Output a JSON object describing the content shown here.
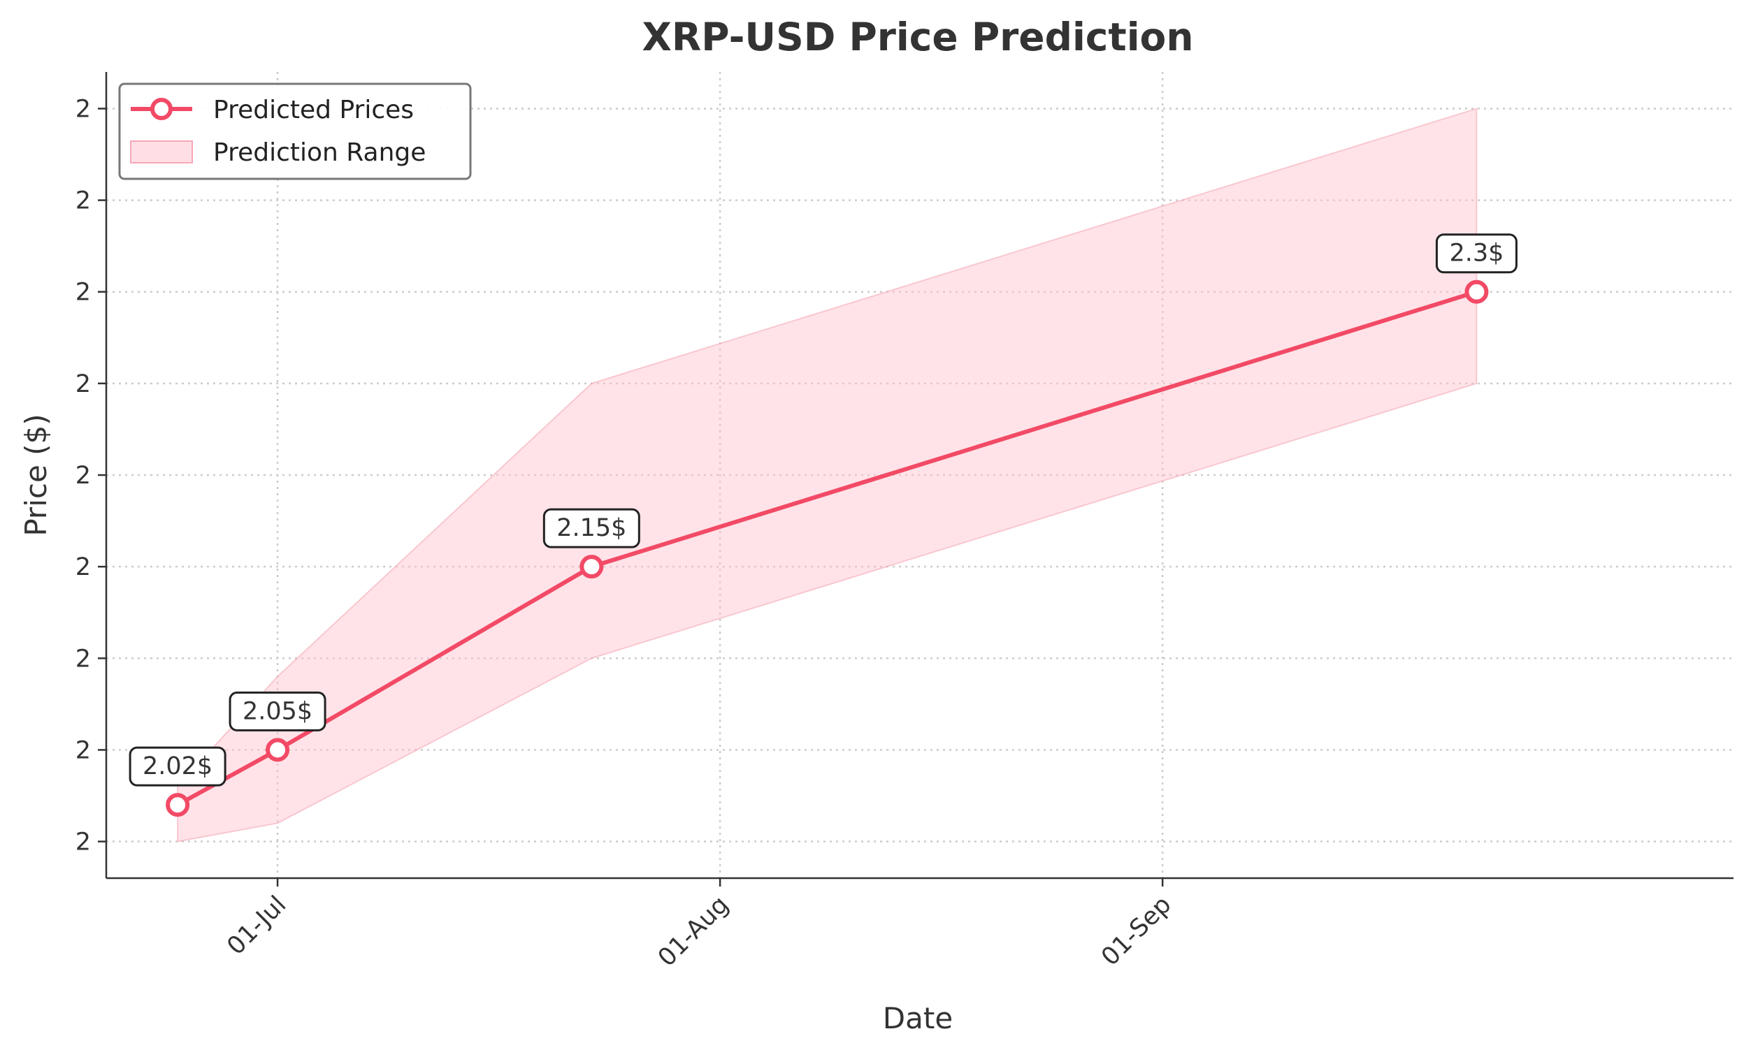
{
  "chart_data": {
    "type": "line",
    "title": "XRP-USD Price Prediction",
    "xlabel": "Date",
    "ylabel": "Price ($)",
    "x_tick_labels": [
      "01-Jul",
      "01-Aug",
      "01-Sep"
    ],
    "x_tick_dates": [
      "2025-07-01",
      "2025-08-01",
      "2025-09-01"
    ],
    "y_tick_labels": [
      "2",
      "2",
      "2",
      "2",
      "2",
      "2",
      "2",
      "2",
      "2"
    ],
    "y_ticks": [
      2.0,
      2.05,
      2.1,
      2.15,
      2.2,
      2.25,
      2.3,
      2.35,
      2.4
    ],
    "xlim": [
      "2025-06-19",
      "2025-10-11"
    ],
    "ylim": [
      1.98,
      2.42
    ],
    "grid": true,
    "legend_position": "top-left",
    "series": [
      {
        "name": "Predicted Prices",
        "color": "#f24a66",
        "marker": "circle-hollow",
        "points": [
          {
            "x": "2025-06-24",
            "y": 2.02,
            "label": "2.02$"
          },
          {
            "x": "2025-07-01",
            "y": 2.05,
            "label": "2.05$"
          },
          {
            "x": "2025-07-23",
            "y": 2.15,
            "label": "2.15$"
          },
          {
            "x": "2025-09-23",
            "y": 2.3,
            "label": "2.3$"
          }
        ]
      }
    ],
    "range": {
      "name": "Prediction Range",
      "color": "#ffc0cb",
      "points": [
        {
          "x": "2025-06-24",
          "low": 2.0,
          "high": 2.03
        },
        {
          "x": "2025-07-01",
          "low": 2.01,
          "high": 2.09
        },
        {
          "x": "2025-07-23",
          "low": 2.1,
          "high": 2.25
        },
        {
          "x": "2025-09-23",
          "low": 2.25,
          "high": 2.4
        }
      ]
    }
  }
}
